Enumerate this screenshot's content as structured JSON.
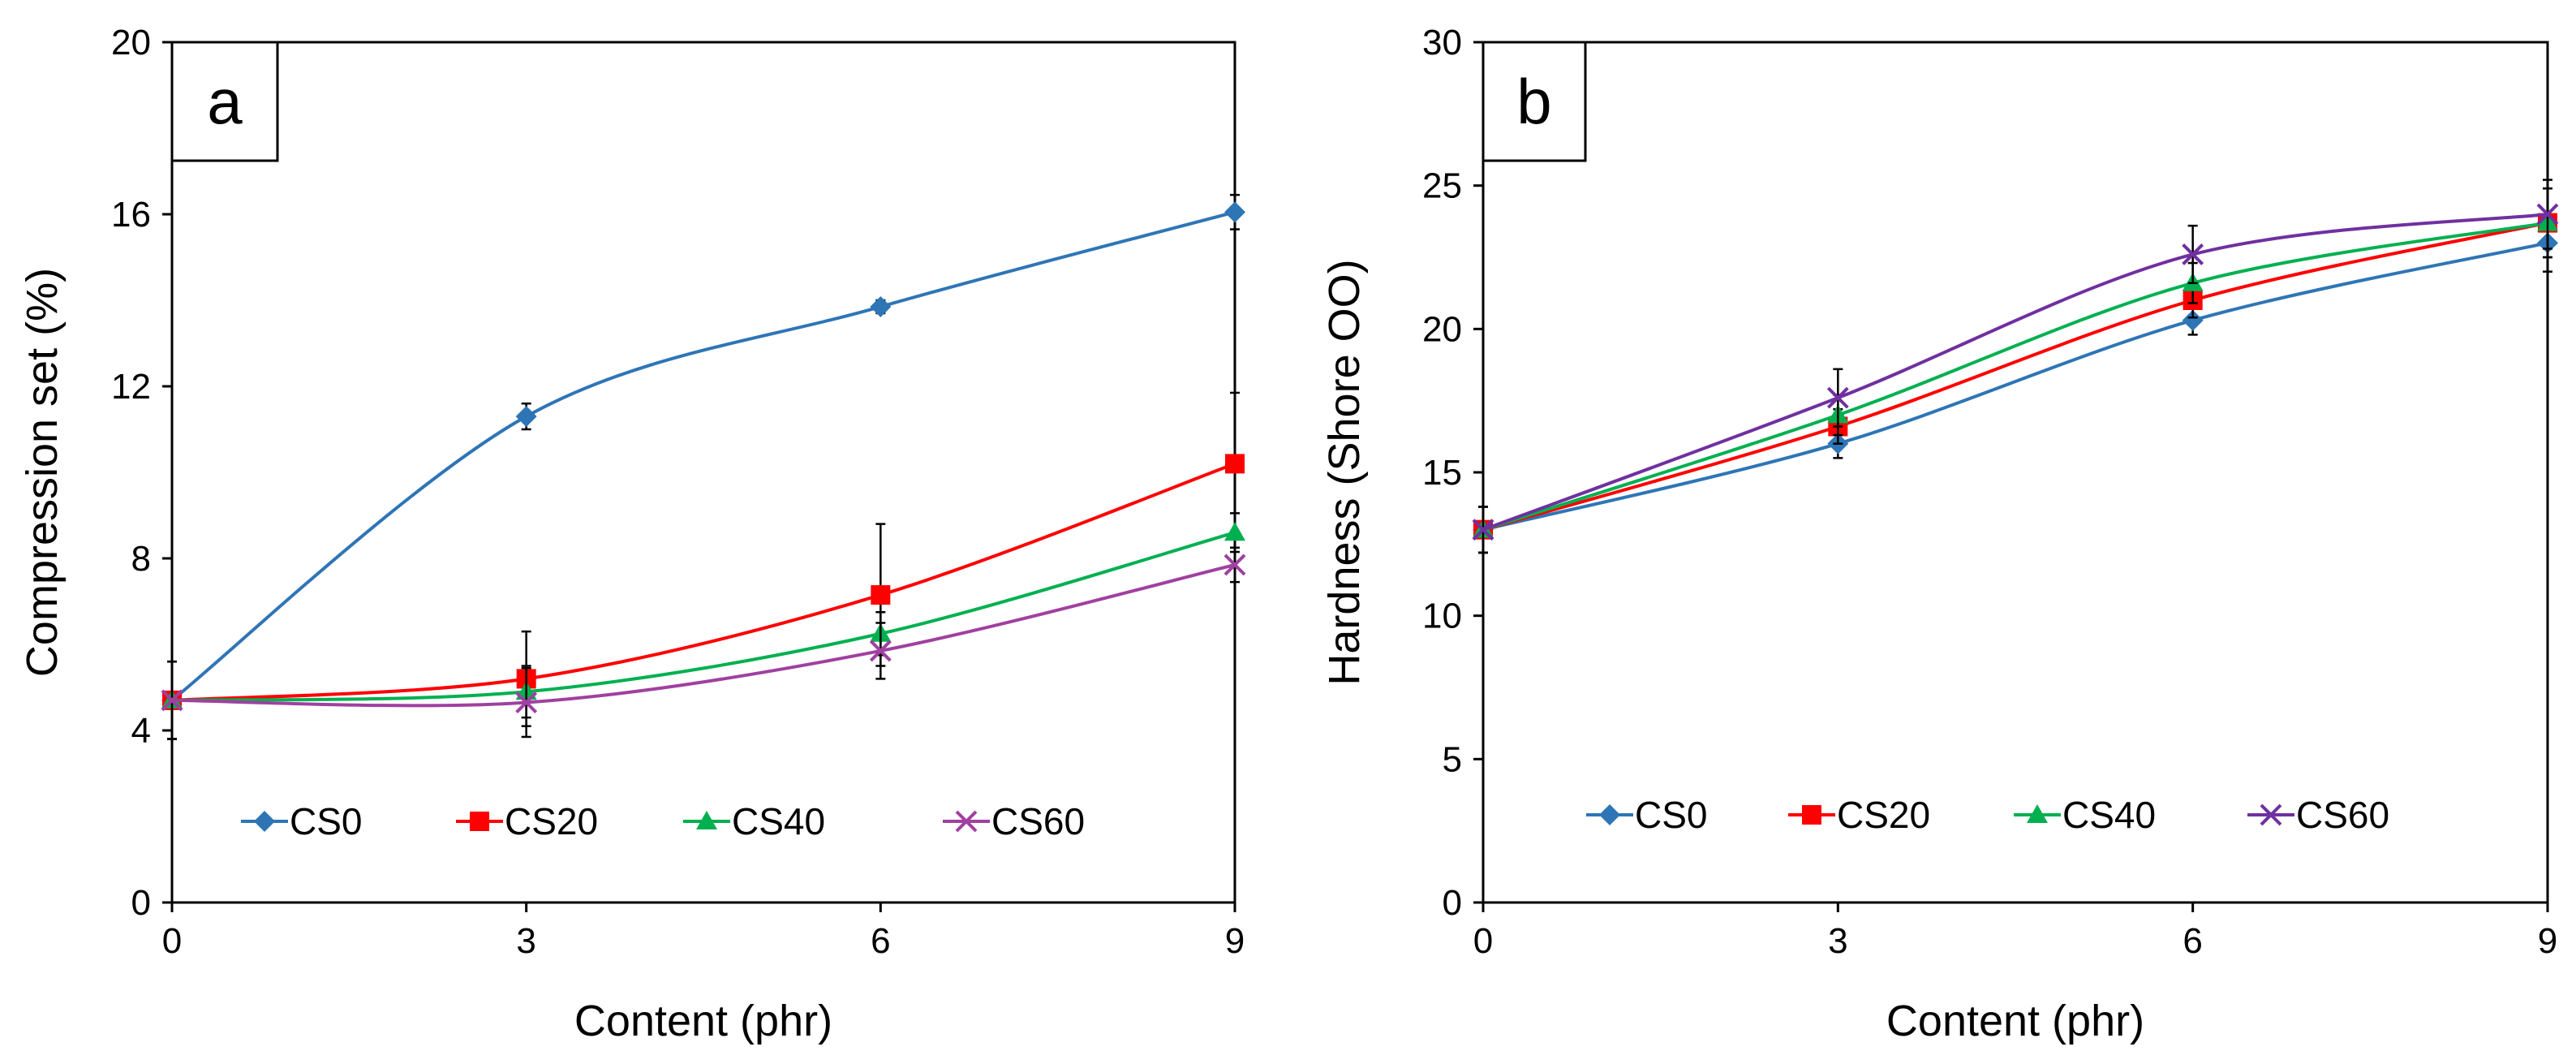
{
  "chart_data": [
    {
      "panel": "a",
      "type": "line",
      "xlabel": "Content (phr)",
      "ylabel": "Compression set (%)",
      "xlim": [
        0,
        9
      ],
      "ylim": [
        0,
        20
      ],
      "xticks": [
        0,
        3,
        6,
        9
      ],
      "yticks": [
        0,
        4,
        8,
        12,
        16,
        20
      ],
      "legend_position": "lower-center",
      "x": [
        0,
        3,
        6,
        9
      ],
      "series": [
        {
          "name": "CS0",
          "color": "#2E75B6",
          "marker": "diamond",
          "values": [
            4.7,
            11.3,
            13.85,
            16.05
          ],
          "errors": [
            0.9,
            0.3,
            0.15,
            0.4
          ]
        },
        {
          "name": "CS20",
          "color": "#FF0000",
          "marker": "square",
          "values": [
            4.7,
            5.2,
            7.15,
            10.2
          ],
          "errors": [
            0.9,
            1.1,
            1.65,
            1.65
          ]
        },
        {
          "name": "CS40",
          "color": "#00B050",
          "marker": "triangle",
          "values": [
            4.7,
            4.9,
            6.25,
            8.6
          ],
          "errors": [
            0.9,
            0.6,
            0.5,
            0.45
          ]
        },
        {
          "name": "CS60",
          "color": "#A040A0",
          "marker": "x",
          "values": [
            4.7,
            4.65,
            5.85,
            7.85
          ],
          "errors": [
            0.9,
            0.8,
            0.65,
            0.4
          ]
        }
      ]
    },
    {
      "panel": "b",
      "type": "line",
      "xlabel": "Content (phr)",
      "ylabel": "Hardness (Shore OO)",
      "xlim": [
        0,
        9
      ],
      "ylim": [
        0,
        30
      ],
      "xticks": [
        0,
        3,
        6,
        9
      ],
      "yticks": [
        0,
        5,
        10,
        15,
        20,
        25,
        30
      ],
      "legend_position": "lower-center",
      "x": [
        0,
        3,
        6,
        9
      ],
      "series": [
        {
          "name": "CS0",
          "color": "#2E75B6",
          "marker": "diamond",
          "values": [
            13.0,
            16.0,
            20.3,
            23.0
          ],
          "errors": [
            0.8,
            0.5,
            0.5,
            1.0
          ]
        },
        {
          "name": "CS20",
          "color": "#FF0000",
          "marker": "square",
          "values": [
            13.0,
            16.6,
            21.0,
            23.7
          ],
          "errors": [
            0.8,
            0.6,
            0.6,
            1.2
          ]
        },
        {
          "name": "CS40",
          "color": "#00B050",
          "marker": "triangle",
          "values": [
            13.0,
            17.0,
            21.6,
            23.7
          ],
          "errors": [
            0.8,
            0.7,
            0.7,
            1.2
          ]
        },
        {
          "name": "CS60",
          "color": "#7030A0",
          "marker": "x",
          "values": [
            13.0,
            17.6,
            22.6,
            24.0
          ],
          "errors": [
            0.8,
            1.0,
            1.0,
            1.2
          ]
        }
      ]
    }
  ]
}
